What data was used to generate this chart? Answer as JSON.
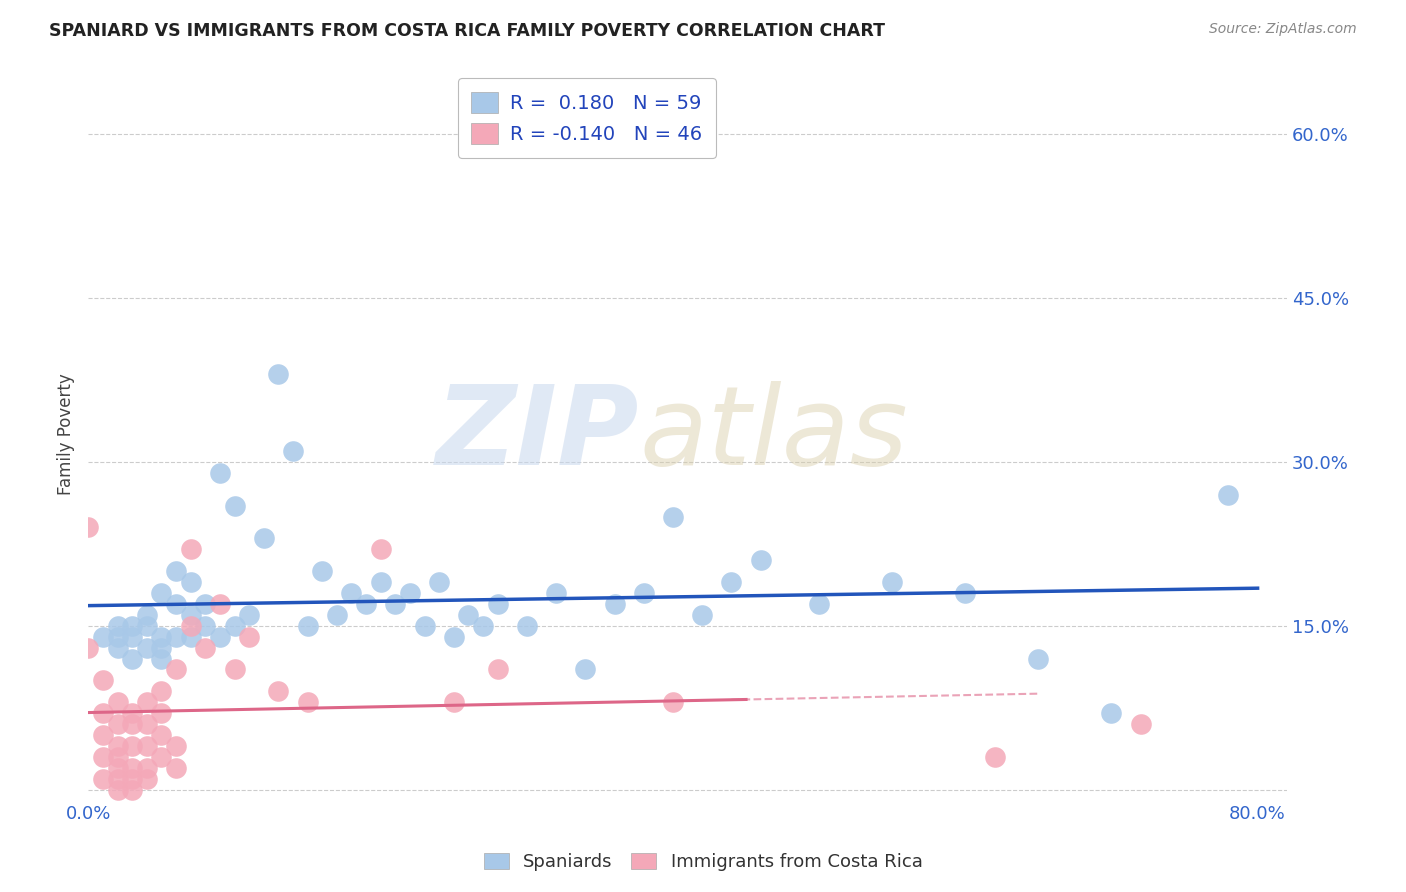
{
  "title": "SPANIARD VS IMMIGRANTS FROM COSTA RICA FAMILY POVERTY CORRELATION CHART",
  "source": "Source: ZipAtlas.com",
  "ylabel": "Family Poverty",
  "xlim": [
    0.0,
    0.82
  ],
  "ylim": [
    -0.01,
    0.66
  ],
  "yticks": [
    0.0,
    0.15,
    0.3,
    0.45,
    0.6
  ],
  "xticks": [
    0.0,
    0.2,
    0.4,
    0.6,
    0.8
  ],
  "grid_color": "#cccccc",
  "background_color": "#ffffff",
  "spaniards_color": "#a8c8e8",
  "costa_rica_color": "#f4a8b8",
  "spaniards_line_color": "#2255bb",
  "costa_rica_line_color": "#dd6688",
  "spaniards_R": 0.18,
  "spaniards_N": 59,
  "costa_rica_R": -0.14,
  "costa_rica_N": 46,
  "spaniards_x": [
    0.01,
    0.02,
    0.02,
    0.02,
    0.03,
    0.03,
    0.03,
    0.04,
    0.04,
    0.04,
    0.05,
    0.05,
    0.05,
    0.05,
    0.06,
    0.06,
    0.06,
    0.07,
    0.07,
    0.07,
    0.08,
    0.08,
    0.09,
    0.09,
    0.1,
    0.1,
    0.11,
    0.12,
    0.13,
    0.14,
    0.15,
    0.16,
    0.17,
    0.18,
    0.19,
    0.2,
    0.21,
    0.22,
    0.23,
    0.24,
    0.25,
    0.26,
    0.27,
    0.28,
    0.3,
    0.32,
    0.34,
    0.36,
    0.38,
    0.4,
    0.42,
    0.44,
    0.46,
    0.5,
    0.55,
    0.6,
    0.65,
    0.7,
    0.78
  ],
  "spaniards_y": [
    0.14,
    0.13,
    0.15,
    0.14,
    0.12,
    0.15,
    0.14,
    0.13,
    0.15,
    0.16,
    0.14,
    0.12,
    0.13,
    0.18,
    0.17,
    0.14,
    0.2,
    0.16,
    0.14,
    0.19,
    0.15,
    0.17,
    0.14,
    0.29,
    0.15,
    0.26,
    0.16,
    0.23,
    0.38,
    0.31,
    0.15,
    0.2,
    0.16,
    0.18,
    0.17,
    0.19,
    0.17,
    0.18,
    0.15,
    0.19,
    0.14,
    0.16,
    0.15,
    0.17,
    0.15,
    0.18,
    0.11,
    0.17,
    0.18,
    0.25,
    0.16,
    0.19,
    0.21,
    0.17,
    0.19,
    0.18,
    0.12,
    0.07,
    0.27
  ],
  "costa_rica_x": [
    0.0,
    0.0,
    0.01,
    0.01,
    0.01,
    0.01,
    0.01,
    0.02,
    0.02,
    0.02,
    0.02,
    0.02,
    0.02,
    0.02,
    0.03,
    0.03,
    0.03,
    0.03,
    0.03,
    0.03,
    0.04,
    0.04,
    0.04,
    0.04,
    0.04,
    0.05,
    0.05,
    0.05,
    0.05,
    0.06,
    0.06,
    0.06,
    0.07,
    0.07,
    0.08,
    0.09,
    0.1,
    0.11,
    0.13,
    0.15,
    0.2,
    0.25,
    0.28,
    0.4,
    0.62,
    0.72
  ],
  "costa_rica_y": [
    0.13,
    0.24,
    0.01,
    0.03,
    0.05,
    0.07,
    0.1,
    0.0,
    0.01,
    0.02,
    0.03,
    0.04,
    0.06,
    0.08,
    0.0,
    0.01,
    0.02,
    0.04,
    0.06,
    0.07,
    0.01,
    0.02,
    0.04,
    0.06,
    0.08,
    0.03,
    0.05,
    0.07,
    0.09,
    0.02,
    0.04,
    0.11,
    0.15,
    0.22,
    0.13,
    0.17,
    0.11,
    0.14,
    0.09,
    0.08,
    0.22,
    0.08,
    0.11,
    0.08,
    0.03,
    0.06
  ]
}
